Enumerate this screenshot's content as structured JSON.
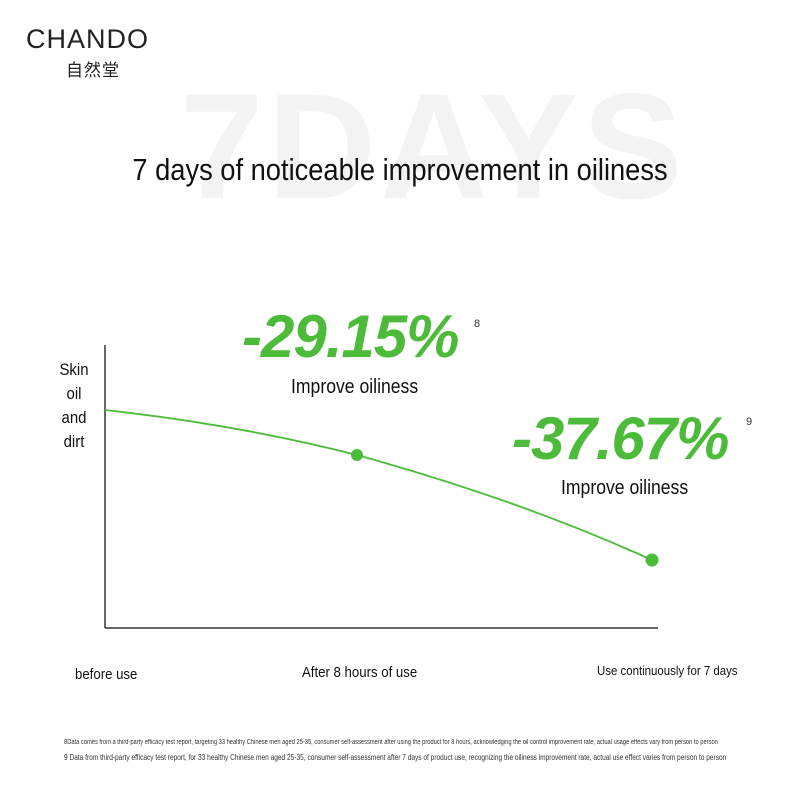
{
  "brand": {
    "name": "CHANDO",
    "chinese": "自然堂"
  },
  "watermark": "7DAYS",
  "title": "7 days of noticeable improvement in oiliness",
  "y_axis_label": [
    "Skin",
    "oil",
    "and",
    "dirt"
  ],
  "callouts": [
    {
      "value": "-29.15%",
      "note": "8",
      "text": "Improve oiliness"
    },
    {
      "value": "-37.67%",
      "note": "9",
      "text": "Improve oiliness"
    }
  ],
  "x_labels": [
    "before use",
    "After 8 hours of use",
    "Use continuously for 7 days"
  ],
  "footnotes": [
    "8Data comes from a third-party efficacy test report, targeting 33 healthy Chinese men aged 25-35, consumer self-assessment after using the product for 8 hours, acknowledging the oil control improvement rate, actual usage effects vary from person to person",
    "9 Data from third-party efficacy test report, for 33 healthy Chinese men aged 25-35, consumer self-assessment after 7 days of product use, recognizing the oiliness improvement rate, actual use effect varies from person to person"
  ]
}
